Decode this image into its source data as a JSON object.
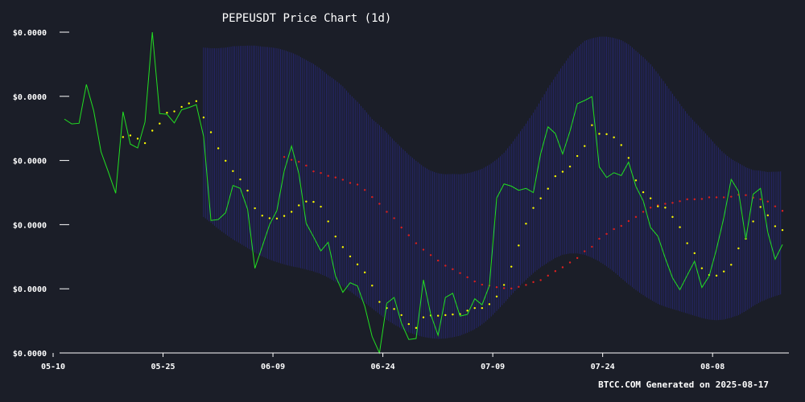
{
  "chart_data": {
    "type": "line",
    "title": "PEPEUSDT Price Chart (1d)",
    "footer": "BTCC.COM Generated on 2025-08-17",
    "x_tick_labels": [
      "05-10",
      "05-25",
      "06-09",
      "06-24",
      "07-09",
      "07-24",
      "08-08"
    ],
    "y_tick_labels": [
      "$0.0000",
      "$0.0000",
      "$0.0000",
      "$0.0000",
      "$0.0000",
      "$0.0000"
    ],
    "x_range": [
      "2025-05-10",
      "2025-08-13"
    ],
    "y_range": [
      0,
      1
    ],
    "grid": false,
    "legend": "none",
    "colors": {
      "price": "#22e022",
      "ma20": "#ffff00",
      "ma50": "#e02020",
      "band": "#2a2a8a",
      "background": "#1b1e28",
      "text": "#ffffff"
    },
    "series": [
      {
        "key": "price",
        "style": "line",
        "values": [
          0.729,
          0.714,
          0.716,
          0.837,
          0.755,
          0.627,
          0.564,
          0.498,
          0.752,
          0.651,
          0.639,
          0.72,
          1.0,
          0.746,
          0.744,
          0.717,
          0.758,
          0.765,
          0.774,
          0.675,
          0.413,
          0.416,
          0.437,
          0.522,
          0.513,
          0.448,
          0.264,
          0.332,
          0.4,
          0.444,
          0.567,
          0.645,
          0.559,
          0.404,
          0.362,
          0.318,
          0.345,
          0.24,
          0.189,
          0.219,
          0.209,
          0.145,
          0.051,
          0.0,
          0.155,
          0.173,
          0.093,
          0.042,
          0.045,
          0.228,
          0.12,
          0.055,
          0.173,
          0.186,
          0.115,
          0.12,
          0.169,
          0.15,
          0.21,
          0.483,
          0.527,
          0.52,
          0.507,
          0.513,
          0.5,
          0.621,
          0.705,
          0.684,
          0.62,
          0.691,
          0.777,
          0.787,
          0.799,
          0.58,
          0.547,
          0.562,
          0.553,
          0.595,
          0.519,
          0.474,
          0.391,
          0.364,
          0.296,
          0.234,
          0.197,
          0.242,
          0.286,
          0.204,
          0.24,
          0.324,
          0.422,
          0.541,
          0.504,
          0.355,
          0.495,
          0.513,
          0.376,
          0.292,
          0.338
        ]
      },
      {
        "key": "ma20",
        "style": "dots",
        "values": [
          null,
          null,
          null,
          null,
          null,
          null,
          null,
          null,
          0.673,
          0.678,
          0.668,
          0.654,
          0.693,
          0.715,
          0.749,
          0.753,
          0.767,
          0.778,
          0.785,
          0.734,
          0.688,
          0.638,
          0.599,
          0.567,
          0.541,
          0.506,
          0.451,
          0.428,
          0.42,
          0.419,
          0.427,
          0.44,
          0.46,
          0.472,
          0.471,
          0.456,
          0.41,
          0.363,
          0.33,
          0.301,
          0.276,
          0.251,
          0.21,
          0.159,
          0.14,
          0.137,
          0.118,
          0.09,
          0.078,
          0.111,
          0.117,
          0.116,
          0.118,
          0.12,
          0.121,
          0.132,
          0.14,
          0.14,
          0.152,
          0.176,
          0.212,
          0.269,
          0.335,
          0.403,
          0.452,
          0.482,
          0.512,
          0.551,
          0.565,
          0.581,
          0.614,
          0.645,
          0.71,
          0.683,
          0.682,
          0.672,
          0.648,
          0.608,
          0.538,
          0.501,
          0.482,
          0.457,
          0.453,
          0.424,
          0.392,
          0.342,
          0.311,
          0.264,
          0.243,
          0.241,
          0.254,
          0.275,
          0.326,
          0.356,
          0.41,
          0.455,
          0.429,
          0.395,
          0.383
        ]
      },
      {
        "key": "ma50",
        "style": "dots",
        "values": [
          null,
          null,
          null,
          null,
          null,
          null,
          null,
          null,
          null,
          null,
          null,
          null,
          null,
          null,
          null,
          null,
          null,
          null,
          null,
          null,
          null,
          null,
          null,
          null,
          null,
          null,
          null,
          null,
          null,
          null,
          0.611,
          0.602,
          0.596,
          0.584,
          0.566,
          0.561,
          0.552,
          0.547,
          0.54,
          0.53,
          0.525,
          0.508,
          0.486,
          0.465,
          0.44,
          0.42,
          0.391,
          0.367,
          0.342,
          0.322,
          0.305,
          0.288,
          0.272,
          0.261,
          0.249,
          0.236,
          0.223,
          0.213,
          0.21,
          0.205,
          0.202,
          0.201,
          0.206,
          0.212,
          0.221,
          0.227,
          0.241,
          0.255,
          0.267,
          0.282,
          0.296,
          0.317,
          0.331,
          0.356,
          0.371,
          0.386,
          0.396,
          0.411,
          0.424,
          0.44,
          0.453,
          0.46,
          0.465,
          0.468,
          0.473,
          0.479,
          0.479,
          0.48,
          0.485,
          0.485,
          0.485,
          0.487,
          0.493,
          0.492,
          0.484,
          0.479,
          0.472,
          0.457,
          0.443
        ]
      }
    ],
    "band": {
      "upper": [
        null,
        null,
        null,
        null,
        null,
        null,
        null,
        null,
        null,
        null,
        null,
        null,
        null,
        null,
        null,
        null,
        null,
        null,
        null,
        0.952,
        0.95,
        0.95,
        0.952,
        0.956,
        0.957,
        0.958,
        0.958,
        0.955,
        0.953,
        0.95,
        0.944,
        0.936,
        0.926,
        0.913,
        0.901,
        0.885,
        0.866,
        0.85,
        0.831,
        0.805,
        0.783,
        0.757,
        0.729,
        0.71,
        0.687,
        0.662,
        0.64,
        0.618,
        0.599,
        0.581,
        0.568,
        0.56,
        0.557,
        0.558,
        0.557,
        0.56,
        0.566,
        0.574,
        0.587,
        0.603,
        0.624,
        0.652,
        0.683,
        0.715,
        0.749,
        0.787,
        0.826,
        0.861,
        0.895,
        0.927,
        0.952,
        0.973,
        0.981,
        0.986,
        0.986,
        0.982,
        0.975,
        0.962,
        0.942,
        0.922,
        0.9,
        0.871,
        0.84,
        0.808,
        0.777,
        0.746,
        0.721,
        0.697,
        0.672,
        0.646,
        0.623,
        0.605,
        0.592,
        0.579,
        0.57,
        0.568,
        0.564,
        0.565,
        0.566
      ],
      "lower": [
        null,
        null,
        null,
        null,
        null,
        null,
        null,
        null,
        null,
        null,
        null,
        null,
        null,
        null,
        null,
        null,
        null,
        null,
        null,
        0.424,
        0.406,
        0.387,
        0.37,
        0.354,
        0.341,
        0.327,
        0.313,
        0.301,
        0.291,
        0.283,
        0.276,
        0.27,
        0.266,
        0.26,
        0.254,
        0.246,
        0.235,
        0.222,
        0.207,
        0.192,
        0.175,
        0.157,
        0.139,
        0.121,
        0.103,
        0.089,
        0.076,
        0.064,
        0.056,
        0.05,
        0.046,
        0.044,
        0.045,
        0.049,
        0.054,
        0.063,
        0.074,
        0.089,
        0.108,
        0.131,
        0.155,
        0.181,
        0.205,
        0.228,
        0.249,
        0.267,
        0.282,
        0.296,
        0.306,
        0.31,
        0.31,
        0.306,
        0.297,
        0.285,
        0.27,
        0.253,
        0.233,
        0.214,
        0.196,
        0.18,
        0.166,
        0.153,
        0.144,
        0.137,
        0.13,
        0.123,
        0.116,
        0.109,
        0.104,
        0.102,
        0.104,
        0.11,
        0.118,
        0.131,
        0.146,
        0.159,
        0.169,
        0.177,
        0.184
      ]
    }
  }
}
